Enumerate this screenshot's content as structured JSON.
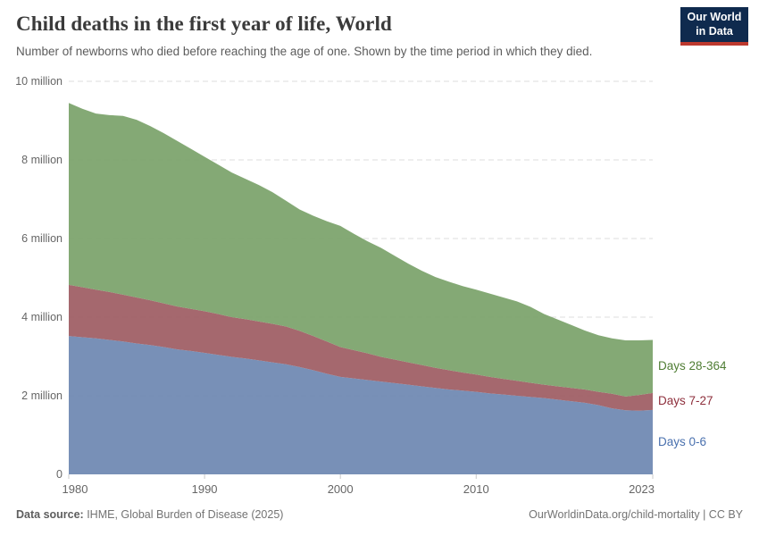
{
  "header": {
    "title": "Child deaths in the first year of life, World",
    "subtitle": "Number of newborns who died before reaching the age of one. Shown by the time period in which they died.",
    "logo": {
      "line1": "Our World",
      "line2": "in Data",
      "bg_color": "#0f2a4e",
      "accent_color": "#bd392e"
    }
  },
  "chart_data": {
    "type": "area",
    "stacked": true,
    "title": "Child deaths in the first year of life, World",
    "unit": "deaths",
    "value_scale": "millions",
    "grid": "dashed-horizontal",
    "legend_position": "right-of-plot",
    "ylim": [
      0,
      10
    ],
    "xlim": [
      1980,
      2023
    ],
    "x": [
      1980,
      1981,
      1982,
      1983,
      1984,
      1985,
      1986,
      1987,
      1988,
      1989,
      1990,
      1991,
      1992,
      1993,
      1994,
      1995,
      1996,
      1997,
      1998,
      1999,
      2000,
      2001,
      2002,
      2003,
      2004,
      2005,
      2006,
      2007,
      2008,
      2009,
      2010,
      2011,
      2012,
      2013,
      2014,
      2015,
      2016,
      2017,
      2018,
      2019,
      2020,
      2021,
      2022,
      2023
    ],
    "series": [
      {
        "name": "Days 0-6",
        "color": "#6e88b2",
        "label_color": "#4970ae",
        "values": [
          3.52,
          3.49,
          3.46,
          3.42,
          3.38,
          3.33,
          3.29,
          3.24,
          3.18,
          3.14,
          3.09,
          3.04,
          2.99,
          2.95,
          2.9,
          2.85,
          2.8,
          2.73,
          2.65,
          2.56,
          2.48,
          2.44,
          2.4,
          2.36,
          2.32,
          2.28,
          2.24,
          2.2,
          2.16,
          2.13,
          2.1,
          2.06,
          2.03,
          2.0,
          1.97,
          1.94,
          1.9,
          1.86,
          1.82,
          1.76,
          1.68,
          1.63,
          1.62,
          1.64
        ]
      },
      {
        "name": "Days 7-27",
        "color": "#9e5c63",
        "label_color": "#8e2f3c",
        "values": [
          1.3,
          1.27,
          1.24,
          1.22,
          1.19,
          1.17,
          1.14,
          1.11,
          1.09,
          1.07,
          1.06,
          1.04,
          1.01,
          1.0,
          0.99,
          0.98,
          0.96,
          0.92,
          0.87,
          0.82,
          0.76,
          0.72,
          0.68,
          0.63,
          0.6,
          0.57,
          0.54,
          0.51,
          0.49,
          0.46,
          0.44,
          0.42,
          0.4,
          0.38,
          0.36,
          0.34,
          0.34,
          0.34,
          0.34,
          0.34,
          0.37,
          0.35,
          0.4,
          0.43
        ]
      },
      {
        "name": "Days 28-364",
        "color": "#7ba26a",
        "label_color": "#4f7d34",
        "values": [
          4.63,
          4.54,
          4.48,
          4.5,
          4.55,
          4.52,
          4.43,
          4.33,
          4.21,
          4.07,
          3.93,
          3.8,
          3.68,
          3.57,
          3.47,
          3.35,
          3.2,
          3.09,
          3.06,
          3.06,
          3.08,
          2.96,
          2.85,
          2.77,
          2.64,
          2.51,
          2.4,
          2.31,
          2.25,
          2.2,
          2.16,
          2.12,
          2.07,
          2.02,
          1.93,
          1.8,
          1.7,
          1.6,
          1.5,
          1.44,
          1.41,
          1.43,
          1.39,
          1.35
        ]
      }
    ],
    "yticks": [
      {
        "value": 0,
        "label": "0"
      },
      {
        "value": 2,
        "label": "2 million"
      },
      {
        "value": 4,
        "label": "4 million"
      },
      {
        "value": 6,
        "label": "6 million"
      },
      {
        "value": 8,
        "label": "8 million"
      },
      {
        "value": 10,
        "label": "10 million"
      }
    ],
    "xticks": [
      {
        "value": 1980,
        "label": "1980"
      },
      {
        "value": 1990,
        "label": "1990"
      },
      {
        "value": 2000,
        "label": "2000"
      },
      {
        "value": 2010,
        "label": "2010"
      },
      {
        "value": 2023,
        "label": "2023"
      }
    ]
  },
  "footer": {
    "source_label": "Data source:",
    "source_value": " IHME, Global Burden of Disease (2025)",
    "link": "OurWorldinData.org/child-mortality",
    "separator": " | ",
    "license": "CC BY"
  }
}
